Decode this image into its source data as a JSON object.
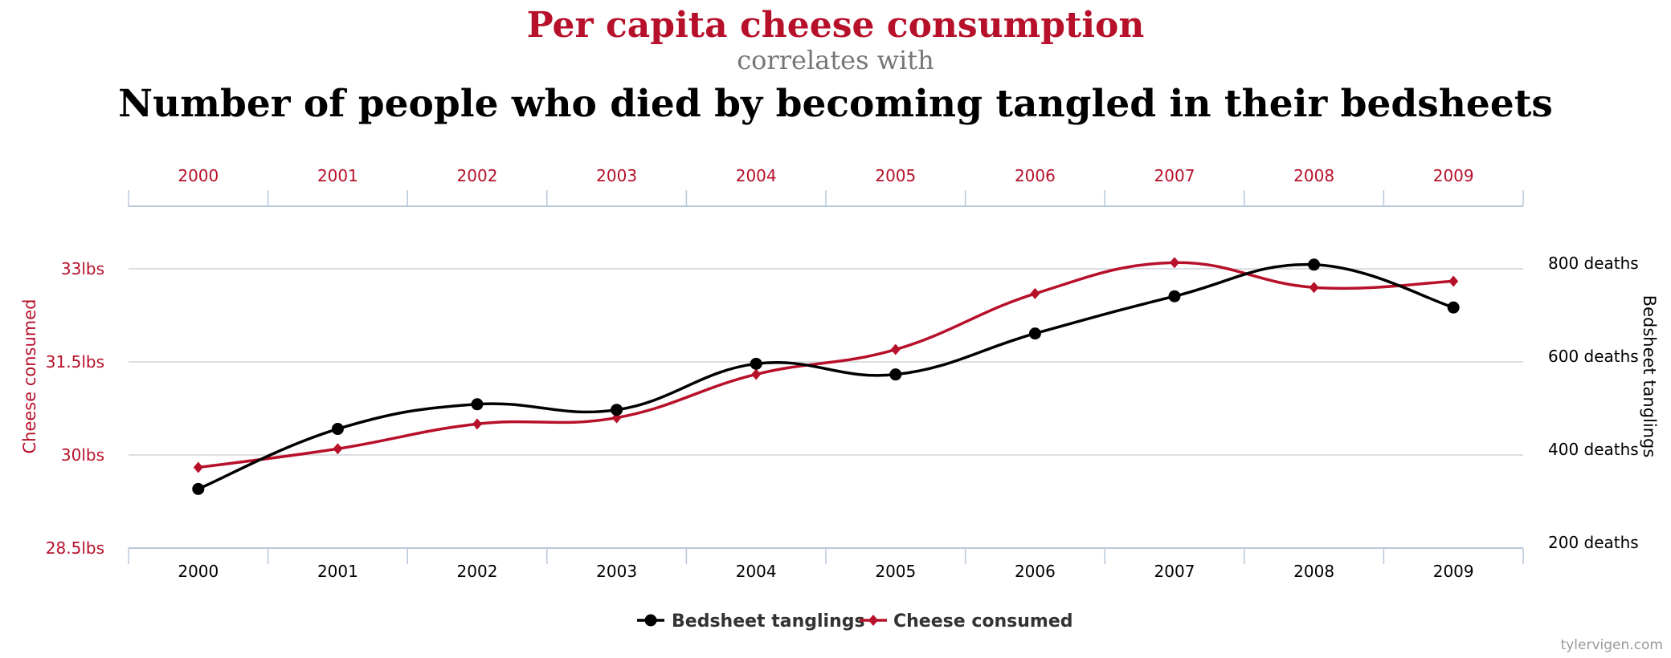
{
  "titles": {
    "line1": "Per capita cheese consumption",
    "line2": "correlates with",
    "line3": "Number of people who died by becoming tangled in their bedsheets"
  },
  "watermark": "tylervigen.com",
  "chart_data": {
    "type": "line",
    "categories": [
      "2000",
      "2001",
      "2002",
      "2003",
      "2004",
      "2005",
      "2006",
      "2007",
      "2008",
      "2009"
    ],
    "series": [
      {
        "name": "Bedsheet tanglings",
        "axis": "right",
        "color": "#000000",
        "marker": "circle",
        "values": [
          327,
          456,
          509,
          497,
          596,
          573,
          661,
          741,
          809,
          717
        ]
      },
      {
        "name": "Cheese consumed",
        "axis": "left",
        "color": "#b7102a",
        "marker": "diamond",
        "values": [
          29.8,
          30.1,
          30.5,
          30.6,
          31.3,
          31.7,
          32.6,
          33.1,
          32.7,
          32.8
        ]
      }
    ],
    "left_axis": {
      "label": "Cheese consumed",
      "ticks": [
        "28.5lbs",
        "30lbs",
        "31.5lbs",
        "33lbs"
      ],
      "tick_values": [
        28.5,
        30,
        31.5,
        33
      ],
      "range": [
        28.5,
        33.93
      ],
      "color": "#b7102a"
    },
    "right_axis": {
      "label": "Bedsheet tanglings",
      "ticks": [
        "200 deaths",
        "400 deaths",
        "600 deaths",
        "800 deaths"
      ],
      "tick_values": [
        200,
        400,
        600,
        800
      ],
      "color": "#000000"
    },
    "grid": true,
    "legend": {
      "position": "bottom",
      "items": [
        "Bedsheet tanglings",
        "Cheese consumed"
      ]
    }
  }
}
